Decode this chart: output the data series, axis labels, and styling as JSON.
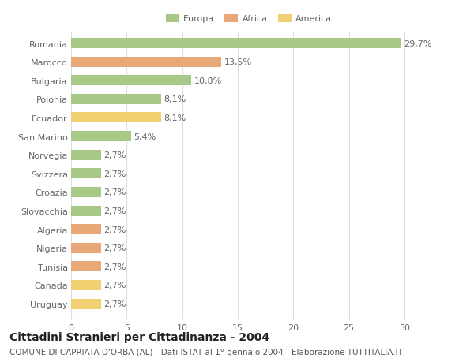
{
  "categories": [
    "Romania",
    "Marocco",
    "Bulgaria",
    "Polonia",
    "Ecuador",
    "San Marino",
    "Norvegia",
    "Svizzera",
    "Croazia",
    "Slovacchia",
    "Algeria",
    "Nigeria",
    "Tunisia",
    "Canada",
    "Uruguay"
  ],
  "values": [
    29.7,
    13.5,
    10.8,
    8.1,
    8.1,
    5.4,
    2.7,
    2.7,
    2.7,
    2.7,
    2.7,
    2.7,
    2.7,
    2.7,
    2.7
  ],
  "labels": [
    "29,7%",
    "13,5%",
    "10,8%",
    "8,1%",
    "8,1%",
    "5,4%",
    "2,7%",
    "2,7%",
    "2,7%",
    "2,7%",
    "2,7%",
    "2,7%",
    "2,7%",
    "2,7%",
    "2,7%"
  ],
  "colors": [
    "#a8c888",
    "#e8a878",
    "#a8c888",
    "#a8c888",
    "#f0d070",
    "#a8c888",
    "#a8c888",
    "#a8c888",
    "#a8c888",
    "#a8c888",
    "#e8a878",
    "#e8a878",
    "#e8a878",
    "#f0d070",
    "#f0d070"
  ],
  "legend_labels": [
    "Europa",
    "Africa",
    "America"
  ],
  "legend_colors": [
    "#a8c888",
    "#e8a878",
    "#f0d070"
  ],
  "title_main": "Cittadini Stranieri per Cittadinanza - 2004",
  "title_sub": "COMUNE DI CAPRIATA D'ORBA (AL) - Dati ISTAT al 1° gennaio 2004 - Elaborazione TUTTITALIA.IT",
  "xlim": [
    0,
    32
  ],
  "xticks": [
    0,
    5,
    10,
    15,
    20,
    25,
    30
  ],
  "background_color": "#ffffff",
  "grid_color": "#dddddd",
  "bar_height": 0.55,
  "label_fontsize": 8,
  "tick_fontsize": 8,
  "title_fontsize": 10,
  "subtitle_fontsize": 7.5
}
